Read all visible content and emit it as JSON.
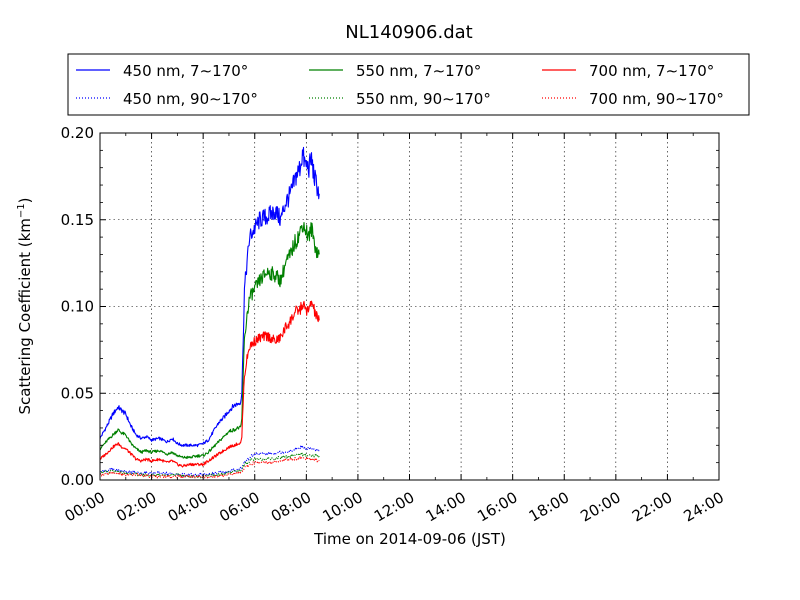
{
  "chart_data": {
    "type": "line",
    "title": "NL140906.dat",
    "xlabel": "Time on 2014-09-06 (JST)",
    "ylabel": "Scattering Coefficient (km",
    "ylabel_sup": "−1",
    "ylabel_end": ")",
    "xlim": [
      0,
      24
    ],
    "ylim": [
      0.0,
      0.2
    ],
    "grid": true,
    "legend_position": "top",
    "x_ticks": [
      0,
      2,
      4,
      6,
      8,
      10,
      12,
      14,
      16,
      18,
      20,
      22,
      24
    ],
    "x_tick_labels": [
      "00:00",
      "02:00",
      "04:00",
      "06:00",
      "08:00",
      "10:00",
      "12:00",
      "14:00",
      "16:00",
      "18:00",
      "20:00",
      "22:00",
      "24:00"
    ],
    "y_ticks": [
      0.0,
      0.05,
      0.1,
      0.15,
      0.2
    ],
    "y_tick_labels": [
      "0.00",
      "0.05",
      "0.10",
      "0.15",
      "0.20"
    ],
    "legend": [
      {
        "label": "450 nm, 7∼170°",
        "color": "#0000ff",
        "style": "solid"
      },
      {
        "label": "550 nm, 7∼170°",
        "color": "#008000",
        "style": "solid"
      },
      {
        "label": "700 nm, 7∼170°",
        "color": "#ff0000",
        "style": "solid"
      },
      {
        "label": "450 nm, 90∼170°",
        "color": "#0000ff",
        "style": "dotted"
      },
      {
        "label": "550 nm, 90∼170°",
        "color": "#008000",
        "style": "dotted"
      },
      {
        "label": "700 nm, 90∼170°",
        "color": "#ff0000",
        "style": "dotted"
      }
    ],
    "series": [
      {
        "name": "450 nm, 7∼170°",
        "color": "#0000ff",
        "style": "solid",
        "x": [
          0.0,
          0.3,
          0.5,
          0.7,
          0.85,
          1.0,
          1.2,
          1.4,
          1.6,
          1.8,
          2.0,
          2.3,
          2.6,
          2.8,
          3.0,
          3.2,
          3.5,
          3.8,
          4.0,
          4.2,
          4.4,
          4.6,
          4.8,
          5.0,
          5.2,
          5.35,
          5.45,
          5.5,
          5.55,
          5.6,
          5.7,
          5.8,
          6.0,
          6.2,
          6.5,
          6.8,
          7.0,
          7.2,
          7.4,
          7.5,
          7.6,
          7.75,
          7.85,
          7.95,
          8.1,
          8.2,
          8.3,
          8.4,
          8.5
        ],
        "y": [
          0.024,
          0.032,
          0.038,
          0.042,
          0.04,
          0.038,
          0.031,
          0.026,
          0.024,
          0.025,
          0.023,
          0.024,
          0.022,
          0.024,
          0.021,
          0.02,
          0.02,
          0.02,
          0.021,
          0.023,
          0.028,
          0.033,
          0.036,
          0.04,
          0.043,
          0.044,
          0.045,
          0.05,
          0.08,
          0.11,
          0.125,
          0.14,
          0.145,
          0.15,
          0.152,
          0.155,
          0.15,
          0.16,
          0.165,
          0.17,
          0.175,
          0.18,
          0.188,
          0.182,
          0.18,
          0.185,
          0.175,
          0.17,
          0.165
        ]
      },
      {
        "name": "550 nm, 7∼170°",
        "color": "#008000",
        "style": "solid",
        "x": [
          0.0,
          0.3,
          0.5,
          0.7,
          0.85,
          1.0,
          1.2,
          1.4,
          1.6,
          1.8,
          2.0,
          2.3,
          2.6,
          2.8,
          3.0,
          3.2,
          3.5,
          3.8,
          4.0,
          4.2,
          4.4,
          4.6,
          4.8,
          5.0,
          5.2,
          5.35,
          5.45,
          5.5,
          5.55,
          5.6,
          5.7,
          5.8,
          6.0,
          6.2,
          6.5,
          6.8,
          7.0,
          7.2,
          7.4,
          7.5,
          7.6,
          7.75,
          7.85,
          7.95,
          8.1,
          8.2,
          8.3,
          8.4,
          8.5
        ],
        "y": [
          0.018,
          0.023,
          0.026,
          0.029,
          0.027,
          0.026,
          0.021,
          0.018,
          0.016,
          0.017,
          0.016,
          0.017,
          0.015,
          0.016,
          0.014,
          0.013,
          0.013,
          0.014,
          0.014,
          0.016,
          0.019,
          0.022,
          0.025,
          0.028,
          0.029,
          0.03,
          0.03,
          0.035,
          0.06,
          0.08,
          0.095,
          0.105,
          0.11,
          0.115,
          0.12,
          0.118,
          0.115,
          0.125,
          0.13,
          0.135,
          0.138,
          0.142,
          0.148,
          0.145,
          0.14,
          0.145,
          0.138,
          0.132,
          0.13
        ]
      },
      {
        "name": "700 nm, 7∼170°",
        "color": "#ff0000",
        "style": "solid",
        "x": [
          0.0,
          0.3,
          0.5,
          0.7,
          0.85,
          1.0,
          1.2,
          1.4,
          1.6,
          1.8,
          2.0,
          2.3,
          2.6,
          2.8,
          3.0,
          3.2,
          3.5,
          3.8,
          4.0,
          4.2,
          4.4,
          4.6,
          4.8,
          5.0,
          5.2,
          5.35,
          5.45,
          5.5,
          5.55,
          5.6,
          5.7,
          5.8,
          6.0,
          6.2,
          6.5,
          6.8,
          7.0,
          7.2,
          7.4,
          7.5,
          7.6,
          7.75,
          7.85,
          7.95,
          8.1,
          8.2,
          8.3,
          8.4,
          8.5
        ],
        "y": [
          0.012,
          0.016,
          0.019,
          0.021,
          0.019,
          0.018,
          0.015,
          0.012,
          0.011,
          0.012,
          0.011,
          0.012,
          0.01,
          0.011,
          0.009,
          0.008,
          0.009,
          0.009,
          0.009,
          0.011,
          0.013,
          0.015,
          0.017,
          0.019,
          0.02,
          0.021,
          0.021,
          0.025,
          0.045,
          0.06,
          0.07,
          0.077,
          0.08,
          0.082,
          0.083,
          0.08,
          0.082,
          0.088,
          0.092,
          0.095,
          0.097,
          0.098,
          0.101,
          0.099,
          0.097,
          0.103,
          0.098,
          0.094,
          0.092
        ]
      },
      {
        "name": "450 nm, 90∼170°",
        "color": "#0000ff",
        "style": "dotted",
        "x": [
          0.0,
          0.5,
          1.0,
          1.5,
          2.0,
          2.5,
          3.0,
          3.5,
          4.0,
          4.5,
          5.0,
          5.3,
          5.5,
          5.6,
          5.8,
          6.0,
          6.5,
          7.0,
          7.5,
          7.8,
          8.0,
          8.2,
          8.5
        ],
        "y": [
          0.005,
          0.006,
          0.005,
          0.004,
          0.004,
          0.004,
          0.003,
          0.003,
          0.003,
          0.004,
          0.005,
          0.006,
          0.007,
          0.01,
          0.013,
          0.015,
          0.015,
          0.016,
          0.017,
          0.019,
          0.018,
          0.018,
          0.017
        ]
      },
      {
        "name": "550 nm, 90∼170°",
        "color": "#008000",
        "style": "dotted",
        "x": [
          0.0,
          0.5,
          1.0,
          1.5,
          2.0,
          2.5,
          3.0,
          3.5,
          4.0,
          4.5,
          5.0,
          5.3,
          5.5,
          5.6,
          5.8,
          6.0,
          6.5,
          7.0,
          7.5,
          7.8,
          8.0,
          8.2,
          8.5
        ],
        "y": [
          0.004,
          0.005,
          0.004,
          0.003,
          0.003,
          0.003,
          0.003,
          0.002,
          0.002,
          0.003,
          0.004,
          0.005,
          0.006,
          0.009,
          0.011,
          0.012,
          0.012,
          0.013,
          0.014,
          0.015,
          0.014,
          0.014,
          0.014
        ]
      },
      {
        "name": "700 nm, 90∼170°",
        "color": "#ff0000",
        "style": "dotted",
        "x": [
          0.0,
          0.5,
          1.0,
          1.5,
          2.0,
          2.5,
          3.0,
          3.5,
          4.0,
          4.5,
          5.0,
          5.3,
          5.5,
          5.6,
          5.8,
          6.0,
          6.5,
          7.0,
          7.5,
          7.8,
          8.0,
          8.2,
          8.5
        ],
        "y": [
          0.003,
          0.004,
          0.003,
          0.003,
          0.002,
          0.002,
          0.002,
          0.002,
          0.002,
          0.002,
          0.003,
          0.004,
          0.005,
          0.007,
          0.009,
          0.01,
          0.01,
          0.011,
          0.012,
          0.013,
          0.012,
          0.012,
          0.011
        ]
      }
    ]
  }
}
